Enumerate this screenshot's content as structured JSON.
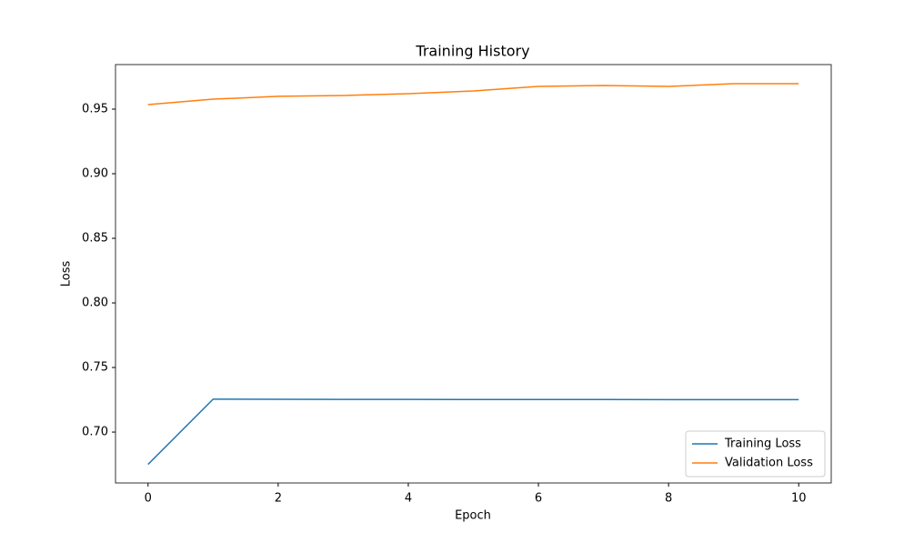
{
  "chart_data": {
    "type": "line",
    "title": "Training History",
    "x_label": "Epoch",
    "y_label": "Loss",
    "x": [
      0,
      1,
      2,
      3,
      4,
      5,
      6,
      7,
      8,
      9,
      10
    ],
    "series": [
      {
        "name": "Training Loss",
        "color": "#1f77b4",
        "values": [
          0.675,
          0.7255,
          0.7254,
          0.7253,
          0.7253,
          0.7252,
          0.7252,
          0.7252,
          0.7251,
          0.7251,
          0.7251
        ]
      },
      {
        "name": "Validation Loss",
        "color": "#ff7f0e",
        "values": [
          0.9535,
          0.9577,
          0.9599,
          0.9606,
          0.962,
          0.9641,
          0.9676,
          0.9683,
          0.9676,
          0.9697,
          0.9697
        ]
      }
    ],
    "xlim": [
      -0.5,
      10.5
    ],
    "xticks": [
      0,
      2,
      4,
      6,
      8,
      10
    ],
    "ylim": [
      0.6606,
      0.9845
    ],
    "yticks": [
      {
        "value": 0.7,
        "label": "0.70"
      },
      0.75,
      {
        "value": 0.8,
        "label": "0.80"
      },
      0.85,
      {
        "value": 0.9,
        "label": "0.90"
      },
      0.95
    ],
    "grid": false,
    "legend": "lower right"
  }
}
